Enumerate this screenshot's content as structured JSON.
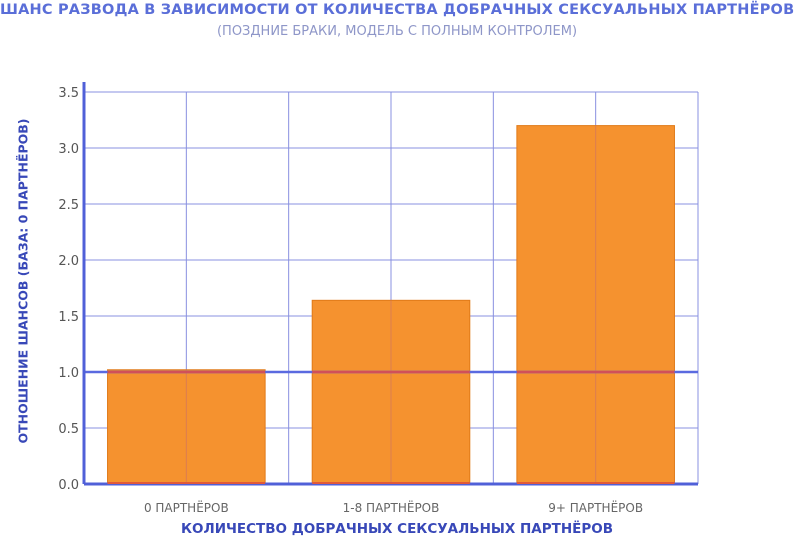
{
  "chart_data": {
    "type": "bar",
    "title": "ШАНС РАЗВОДА В ЗАВИСИМОСТИ ОТ КОЛИЧЕСТВА ДОБРАЧНЫХ СЕКСУАЛЬНЫХ ПАРТНЁРОВ",
    "subtitle": "(ПОЗДНИЕ БРАКИ, МОДЕЛЬ С ПОЛНЫМ КОНТРОЛЕМ)",
    "xlabel": "КОЛИЧЕСТВО ДОБРАЧНЫХ СЕКСУАЛЬНЫХ ПАРТНЁРОВ",
    "ylabel": "ОТНОШЕНИЕ ШАНСОВ (БАЗА: 0 ПАРТНЁРОВ)",
    "categories": [
      "0 ПАРТНЁРОВ",
      "1-8 ПАРТНЁРОВ",
      "9+ ПАРТНЁРОВ"
    ],
    "values": [
      1.02,
      1.64,
      3.2
    ],
    "ylim": [
      0,
      3.5
    ],
    "yticks": [
      "0.0",
      "0.5",
      "1.0",
      "1.5",
      "2.0",
      "2.5",
      "3.0",
      "3.5"
    ],
    "grid": true,
    "reference_line": 1.0,
    "colors": {
      "bar": "#f5922f",
      "bar_stroke": "#e07a18",
      "axis": "#5060d8",
      "grid": "#8890e0",
      "reference_line": "#5a6ae0",
      "baseline_strip": "#e05a3a"
    }
  }
}
